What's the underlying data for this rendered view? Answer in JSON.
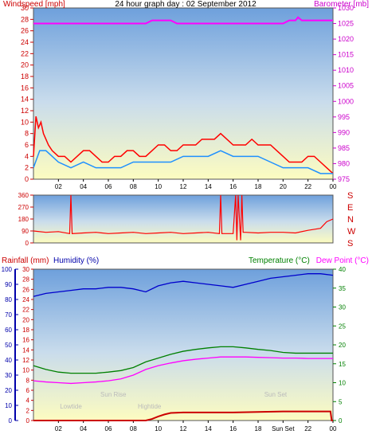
{
  "chart_data": [
    {
      "type": "line",
      "title": "24 hour graph day : 02 September 2012",
      "left_axis_label": "Windspeed [mph]",
      "right_axis_label": "Barometer [mb]",
      "x_ticks": [
        "02",
        "04",
        "06",
        "08",
        "10",
        "12",
        "14",
        "16",
        "18",
        "20",
        "22",
        "00"
      ],
      "x_range_hours": [
        0,
        24
      ],
      "left_ylim": [
        0,
        30
      ],
      "left_ticks": [
        "0",
        "2",
        "4",
        "6",
        "8",
        "10",
        "12",
        "14",
        "16",
        "18",
        "20",
        "22",
        "24",
        "26",
        "28",
        "30"
      ],
      "right_ylim": [
        975,
        1030
      ],
      "right_ticks": [
        "975",
        "980",
        "985",
        "990",
        "995",
        "1000",
        "1005",
        "1010",
        "1015",
        "1020",
        "1025",
        "1030"
      ],
      "colors": {
        "gust": "#ff0000",
        "average": "#1e90ff",
        "barometer": "#ff00ff",
        "left_axis": "#cc0000",
        "right_axis": "#cc00cc"
      },
      "series": [
        {
          "key": "gust",
          "x": [
            0,
            0.2,
            0.4,
            0.6,
            0.8,
            1,
            1.2,
            1.5,
            2,
            2.5,
            3,
            3.5,
            4,
            4.5,
            5,
            5.5,
            6,
            6.5,
            7,
            7.5,
            8,
            8.5,
            9,
            9.5,
            10,
            10.5,
            11,
            11.5,
            12,
            12.5,
            13,
            13.5,
            14,
            14.5,
            15,
            15.5,
            16,
            16.5,
            17,
            17.5,
            18,
            18.5,
            19,
            19.5,
            20,
            20.5,
            21,
            21.5,
            22,
            22.5,
            23,
            23.5,
            24
          ],
          "values": [
            4,
            11,
            9,
            10,
            8,
            7,
            6,
            5,
            4,
            4,
            3,
            4,
            5,
            5,
            4,
            3,
            3,
            4,
            4,
            5,
            5,
            4,
            4,
            5,
            6,
            6,
            5,
            5,
            6,
            6,
            6,
            7,
            7,
            7,
            8,
            7,
            6,
            6,
            6,
            7,
            6,
            6,
            6,
            5,
            4,
            3,
            3,
            3,
            4,
            4,
            3,
            2,
            1
          ]
        },
        {
          "key": "average",
          "x": [
            0,
            0.5,
            1,
            1.5,
            2,
            3,
            4,
            5,
            6,
            7,
            8,
            9,
            10,
            11,
            12,
            13,
            14,
            15,
            16,
            17,
            18,
            19,
            20,
            21,
            22,
            23,
            24
          ],
          "values": [
            2,
            5,
            5,
            4,
            3,
            2,
            3,
            2,
            2,
            2,
            3,
            3,
            3,
            3,
            4,
            4,
            4,
            5,
            4,
            4,
            4,
            3,
            2,
            2,
            2,
            1,
            1
          ]
        },
        {
          "key": "barometer",
          "x": [
            0,
            2,
            4,
            6,
            8,
            9,
            9.5,
            10,
            11,
            11.5,
            12,
            14,
            16,
            18,
            20,
            20.5,
            21,
            21.2,
            21.5,
            22,
            23,
            24
          ],
          "values": [
            1025,
            1025,
            1025,
            1025,
            1025,
            1025,
            1026,
            1026,
            1026,
            1025,
            1025,
            1025,
            1025,
            1025,
            1025,
            1026,
            1026,
            1027,
            1026,
            1026,
            1026,
            1026
          ]
        }
      ]
    },
    {
      "type": "line",
      "title": "",
      "left_ticks": [
        "0",
        "90",
        "180",
        "270",
        "360"
      ],
      "left_ylim": [
        0,
        360
      ],
      "compass_labels": [
        "S",
        "E",
        "N",
        "W",
        "S"
      ],
      "x_range_hours": [
        0,
        24
      ],
      "colors": {
        "direction": "#ff0000",
        "axis": "#cc0000"
      },
      "series": [
        {
          "key": "direction",
          "x": [
            0,
            1,
            2,
            2.9,
            3,
            3.1,
            4,
            5,
            6,
            7,
            8,
            9,
            10,
            11,
            12,
            13,
            14,
            14.9,
            15,
            15.1,
            16,
            16.2,
            16.3,
            16.4,
            16.6,
            16.7,
            16.8,
            17,
            18,
            19,
            20,
            21,
            22,
            23,
            23.5,
            24
          ],
          "values": [
            90,
            80,
            85,
            70,
            360,
            70,
            75,
            80,
            70,
            75,
            80,
            70,
            75,
            80,
            70,
            75,
            80,
            70,
            360,
            70,
            70,
            360,
            20,
            360,
            20,
            360,
            80,
            80,
            75,
            80,
            80,
            75,
            95,
            110,
            160,
            180
          ]
        }
      ]
    },
    {
      "type": "line",
      "title": "",
      "rainfall_label": "Rainfall (mm)",
      "humidity_label": "Humidity (%)",
      "temperature_label": "Temperature (°C)",
      "dewpoint_label": "Dew Point (°C)",
      "x_ticks": [
        "02",
        "04",
        "06",
        "08",
        "10",
        "12",
        "14",
        "16",
        "18",
        "Sun Set",
        "22",
        "00"
      ],
      "x_range_hours": [
        0,
        24
      ],
      "rain_ticks": [
        "0",
        "2",
        "4",
        "6",
        "8",
        "10",
        "12",
        "14",
        "16",
        "18",
        "20",
        "22",
        "24",
        "26",
        "28",
        "30"
      ],
      "rain_ylim": [
        0,
        30
      ],
      "humidity_ticks": [
        "0",
        "10",
        "20",
        "30",
        "40",
        "50",
        "60",
        "70",
        "80",
        "90",
        "100"
      ],
      "humidity_ylim": [
        0,
        100
      ],
      "temp_ticks": [
        "0",
        "5",
        "10",
        "15",
        "20",
        "25",
        "30",
        "35",
        "40"
      ],
      "temp_ylim": [
        0,
        40
      ],
      "annotations": [
        {
          "text": "Lowtide",
          "hour": 3
        },
        {
          "text": "Sun Rise",
          "hour": 6.4
        },
        {
          "text": "Hightide",
          "hour": 9.3
        },
        {
          "text": "Sun Set",
          "hour": 19.4
        }
      ],
      "colors": {
        "rain": "#cc0000",
        "humidity": "#0000cc",
        "temperature": "#008000",
        "dewpoint": "#ff00ff",
        "rain_axis": "#cc0000",
        "humidity_axis": "#0000aa",
        "temp_axis": "#008000"
      },
      "series": [
        {
          "key": "humidity",
          "x": [
            0,
            1,
            2,
            3,
            4,
            5,
            6,
            7,
            8,
            9,
            10,
            11,
            12,
            13,
            14,
            15,
            16,
            17,
            18,
            19,
            20,
            21,
            22,
            23,
            24
          ],
          "values": [
            82,
            84,
            85,
            86,
            87,
            87,
            88,
            88,
            87,
            85,
            89,
            91,
            92,
            91,
            90,
            89,
            88,
            90,
            92,
            94,
            95,
            96,
            97,
            97,
            96
          ]
        },
        {
          "key": "temperature",
          "x": [
            0,
            1,
            2,
            3,
            4,
            5,
            6,
            7,
            8,
            9,
            10,
            11,
            12,
            13,
            14,
            15,
            16,
            17,
            18,
            19,
            20,
            21,
            22,
            23,
            24
          ],
          "values": [
            14.5,
            13.5,
            12.8,
            12.5,
            12.5,
            12.5,
            12.8,
            13.2,
            14,
            15.5,
            16.5,
            17.5,
            18.3,
            18.8,
            19.2,
            19.5,
            19.5,
            19.2,
            18.8,
            18.5,
            18,
            17.8,
            17.8,
            17.8,
            17.8
          ]
        },
        {
          "key": "dewpoint",
          "x": [
            0,
            1,
            2,
            3,
            4,
            5,
            6,
            7,
            8,
            9,
            10,
            11,
            12,
            13,
            14,
            15,
            16,
            17,
            18,
            19,
            20,
            21,
            22,
            23,
            24
          ],
          "values": [
            10.5,
            10.2,
            10,
            9.8,
            10,
            10.2,
            10.5,
            11,
            12,
            13.5,
            14.5,
            15.2,
            15.8,
            16.2,
            16.5,
            16.8,
            16.8,
            16.8,
            16.7,
            16.6,
            16.5,
            16.5,
            16.4,
            16.4,
            16.4
          ]
        },
        {
          "key": "rain",
          "x": [
            0,
            9,
            9.5,
            10,
            10.5,
            11,
            12,
            14,
            16,
            18,
            20,
            22,
            23.8,
            23.9,
            24
          ],
          "values": [
            0,
            0,
            0.3,
            0.8,
            1.2,
            1.5,
            1.6,
            1.6,
            1.6,
            1.7,
            1.8,
            1.8,
            1.8,
            0,
            0
          ]
        }
      ]
    }
  ]
}
